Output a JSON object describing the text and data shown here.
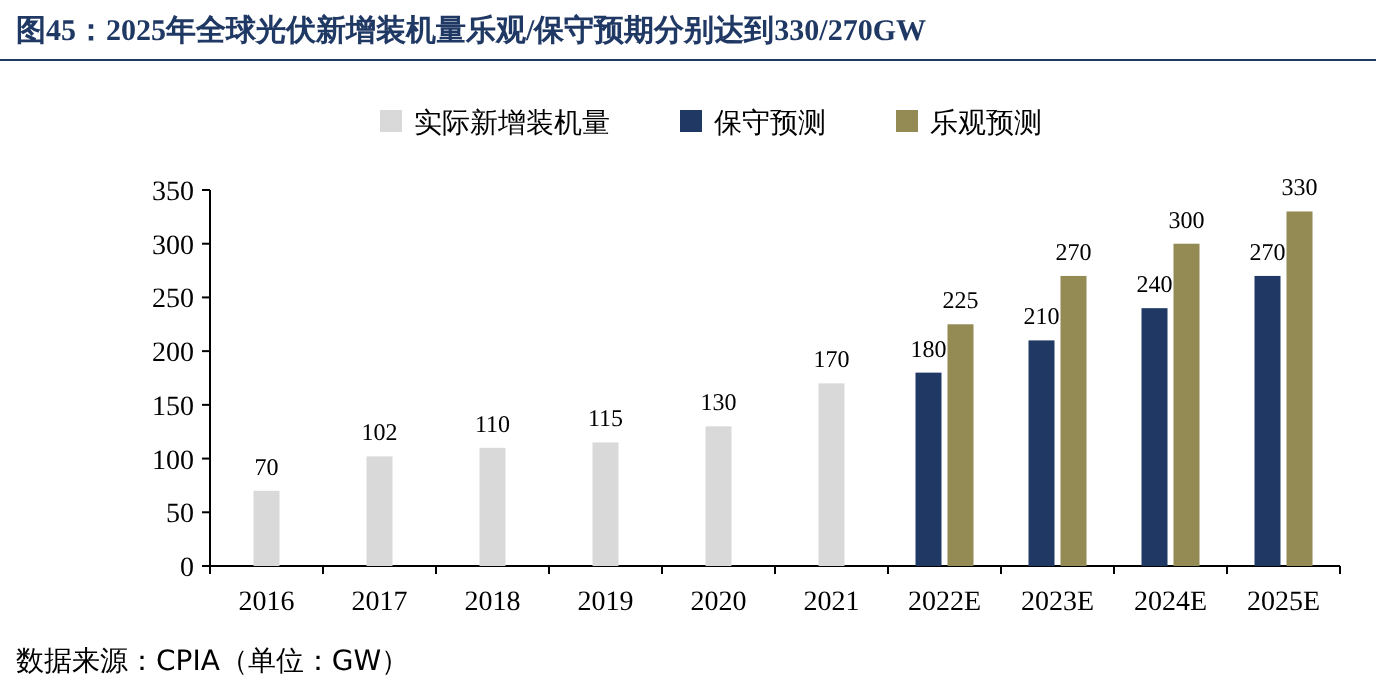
{
  "chart_data": {
    "type": "bar",
    "title": "图45：2025年全球光伏新增装机量乐观/保守预期分别达到330/270GW",
    "categories": [
      "2016",
      "2017",
      "2018",
      "2019",
      "2020",
      "2021",
      "2022E",
      "2023E",
      "2024E",
      "2025E"
    ],
    "series": [
      {
        "name": "实际新增装机量",
        "color": "#d9d9d9",
        "values": [
          70,
          102,
          110,
          115,
          130,
          170,
          null,
          null,
          null,
          null
        ]
      },
      {
        "name": "保守预测",
        "color": "#1f3864",
        "values": [
          null,
          null,
          null,
          null,
          null,
          null,
          180,
          210,
          240,
          270
        ]
      },
      {
        "name": "乐观预测",
        "color": "#948a54",
        "values": [
          null,
          null,
          null,
          null,
          null,
          null,
          225,
          270,
          300,
          330
        ]
      }
    ],
    "ylim": [
      0,
      350
    ],
    "yticks": [
      0,
      50,
      100,
      150,
      200,
      250,
      300,
      350
    ],
    "data_labels": true,
    "legend": "top",
    "grid": false,
    "annotations": [
      "数据来源：CPIA（单位：GW）"
    ]
  }
}
